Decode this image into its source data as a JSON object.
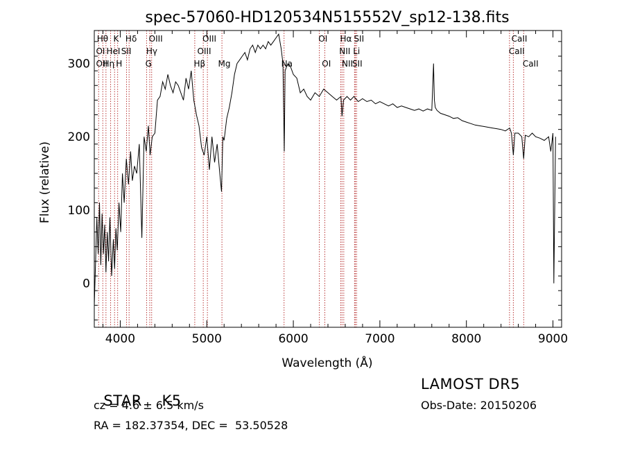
{
  "chart_data": {
    "type": "line",
    "title": "spec-57060-HD120534N515552V_sp12-138.fits",
    "xlabel": "Wavelength (Å)",
    "ylabel": "Flux (relative)",
    "xlim": [
      3700,
      9100
    ],
    "ylim": [
      -60,
      345
    ],
    "x_ticks": [
      4000,
      5000,
      6000,
      7000,
      8000,
      9000
    ],
    "y_ticks": [
      0,
      100,
      200,
      300
    ],
    "grid": false,
    "line_color": "#000000",
    "marker_color": "#b22222",
    "series": [
      {
        "x": [
          3700,
          3715,
          3730,
          3745,
          3760,
          3775,
          3790,
          3805,
          3820,
          3835,
          3850,
          3865,
          3880,
          3900,
          3920,
          3935,
          3950,
          3965,
          3985,
          4005,
          4025,
          4045,
          4070,
          4095,
          4120,
          4140,
          4165,
          4190,
          4220,
          4250,
          4275,
          4300,
          4325,
          4345,
          4370,
          4400,
          4430,
          4460,
          4490,
          4520,
          4550,
          4580,
          4610,
          4640,
          4670,
          4700,
          4730,
          4760,
          4790,
          4820,
          4850,
          4880,
          4910,
          4940,
          4970,
          5000,
          5030,
          5060,
          5090,
          5120,
          5150,
          5170,
          5185,
          5200,
          5230,
          5260,
          5290,
          5320,
          5350,
          5380,
          5410,
          5440,
          5470,
          5500,
          5530,
          5560,
          5590,
          5620,
          5650,
          5680,
          5710,
          5740,
          5770,
          5800,
          5830,
          5860,
          5880,
          5895,
          5905,
          5920,
          5940,
          5970,
          6000,
          6040,
          6080,
          6120,
          6160,
          6200,
          6250,
          6300,
          6350,
          6400,
          6450,
          6500,
          6550,
          6563,
          6580,
          6620,
          6660,
          6700,
          6750,
          6800,
          6850,
          6900,
          6950,
          7000,
          7050,
          7100,
          7150,
          7200,
          7250,
          7300,
          7350,
          7400,
          7450,
          7500,
          7550,
          7600,
          7620,
          7630,
          7640,
          7660,
          7700,
          7750,
          7800,
          7850,
          7900,
          7950,
          8000,
          8050,
          8100,
          8150,
          8200,
          8250,
          8300,
          8350,
          8400,
          8450,
          8500,
          8520,
          8542,
          8560,
          8600,
          8640,
          8662,
          8680,
          8720,
          8760,
          8800,
          8850,
          8900,
          8950,
          8975,
          8990,
          9000,
          9010,
          9030
        ],
        "values": [
          -30,
          30,
          90,
          40,
          110,
          25,
          95,
          40,
          80,
          15,
          70,
          30,
          90,
          10,
          60,
          20,
          75,
          45,
          110,
          70,
          150,
          110,
          170,
          135,
          180,
          140,
          160,
          150,
          190,
          62,
          200,
          180,
          215,
          175,
          200,
          205,
          250,
          255,
          275,
          265,
          285,
          270,
          260,
          275,
          270,
          260,
          250,
          280,
          265,
          290,
          250,
          230,
          215,
          185,
          175,
          200,
          155,
          200,
          165,
          190,
          150,
          125,
          200,
          195,
          225,
          240,
          260,
          285,
          300,
          305,
          310,
          315,
          305,
          320,
          325,
          315,
          325,
          320,
          325,
          320,
          330,
          325,
          330,
          335,
          340,
          320,
          300,
          180,
          290,
          295,
          300,
          295,
          285,
          280,
          260,
          265,
          255,
          250,
          260,
          255,
          265,
          260,
          255,
          250,
          255,
          228,
          250,
          255,
          250,
          255,
          248,
          252,
          248,
          250,
          245,
          248,
          245,
          242,
          245,
          240,
          242,
          240,
          238,
          236,
          238,
          235,
          238,
          236,
          300,
          250,
          240,
          236,
          232,
          230,
          228,
          225,
          226,
          222,
          220,
          218,
          216,
          215,
          214,
          213,
          212,
          211,
          210,
          208,
          212,
          205,
          175,
          205,
          205,
          200,
          170,
          202,
          200,
          205,
          200,
          198,
          195,
          200,
          180,
          195,
          205,
          0,
          200
        ]
      }
    ],
    "lines": [
      {
        "wl": 3750,
        "labels": [
          "Hθ",
          "OII"
        ]
      },
      {
        "wl": 3798,
        "labels": [
          "OII"
        ]
      },
      {
        "wl": 3835,
        "labels": [
          "Hη"
        ]
      },
      {
        "wl": 3889,
        "labels": [
          "HeI"
        ]
      },
      {
        "wl": 3934,
        "labels": [
          "K"
        ]
      },
      {
        "wl": 3970,
        "labels": [
          "H"
        ]
      },
      {
        "wl": 4072,
        "labels": [
          "SII"
        ]
      },
      {
        "wl": 4102,
        "labels": [
          "Hδ"
        ]
      },
      {
        "wl": 4304,
        "labels": [
          "G"
        ]
      },
      {
        "wl": 4341,
        "labels": [
          "Hγ"
        ]
      },
      {
        "wl": 4363,
        "labels": [
          "OIII"
        ]
      },
      {
        "wl": 4861,
        "labels": [
          "Hβ"
        ]
      },
      {
        "wl": 4959,
        "labels": [
          "OIII"
        ]
      },
      {
        "wl": 5007,
        "labels": [
          "OIII"
        ]
      },
      {
        "wl": 5175,
        "labels": [
          "Mg"
        ]
      },
      {
        "wl": 5893,
        "labels": [
          "Na"
        ]
      },
      {
        "wl": 6300,
        "labels": [
          "OI"
        ]
      },
      {
        "wl": 6364,
        "labels": [
          "OI"
        ]
      },
      {
        "wl": 6548,
        "labels": [
          "NII"
        ]
      },
      {
        "wl": 6563,
        "labels": [
          "Hα"
        ]
      },
      {
        "wl": 6583,
        "labels": [
          "NII"
        ]
      },
      {
        "wl": 6707,
        "labels": [
          "Li"
        ]
      },
      {
        "wl": 6716,
        "labels": [
          "SII"
        ]
      },
      {
        "wl": 6731,
        "labels": [
          "SII"
        ]
      },
      {
        "wl": 8498,
        "labels": [
          "CaII"
        ]
      },
      {
        "wl": 8542,
        "labels": [
          "CaII"
        ]
      },
      {
        "wl": 8662,
        "labels": [
          "CaII"
        ]
      }
    ],
    "line_label_rows": [
      {
        "text": "Hθ",
        "wl": 3730,
        "row": 0
      },
      {
        "text": "K",
        "wl": 3920,
        "row": 0
      },
      {
        "text": "Hδ",
        "wl": 4060,
        "row": 0
      },
      {
        "text": "OIII",
        "wl": 4330,
        "row": 0
      },
      {
        "text": "OIII",
        "wl": 4950,
        "row": 0
      },
      {
        "text": "OI",
        "wl": 6290,
        "row": 0
      },
      {
        "text": "Hα",
        "wl": 6540,
        "row": 0
      },
      {
        "text": "SII",
        "wl": 6700,
        "row": 0
      },
      {
        "text": "CaII",
        "wl": 8520,
        "row": 0
      },
      {
        "text": "OI",
        "wl": 3720,
        "row": 1
      },
      {
        "text": "HeI",
        "wl": 3840,
        "row": 1
      },
      {
        "text": "SII",
        "wl": 4010,
        "row": 1
      },
      {
        "text": "Hγ",
        "wl": 4300,
        "row": 1
      },
      {
        "text": "OIII",
        "wl": 4890,
        "row": 1
      },
      {
        "text": "NII",
        "wl": 6530,
        "row": 1
      },
      {
        "text": "Li",
        "wl": 6690,
        "row": 1
      },
      {
        "text": "CaII",
        "wl": 8490,
        "row": 1
      },
      {
        "text": "OII",
        "wl": 3720,
        "row": 2
      },
      {
        "text": "Hη",
        "wl": 3800,
        "row": 2
      },
      {
        "text": "H",
        "wl": 3950,
        "row": 2
      },
      {
        "text": "G",
        "wl": 4290,
        "row": 2
      },
      {
        "text": "Hβ",
        "wl": 4850,
        "row": 2
      },
      {
        "text": "Mg",
        "wl": 5130,
        "row": 2
      },
      {
        "text": "Na",
        "wl": 5860,
        "row": 2
      },
      {
        "text": "OI",
        "wl": 6330,
        "row": 2
      },
      {
        "text": "NII",
        "wl": 6560,
        "row": 2
      },
      {
        "text": "SII",
        "wl": 6680,
        "row": 2
      },
      {
        "text": "CaII",
        "wl": 8650,
        "row": 2
      }
    ]
  },
  "info": {
    "class_label": "STAR",
    "subclass": "K5",
    "survey": "LAMOST DR5",
    "cz_line": "cz = 4.6 ± 6.5 km/s",
    "obs_date": "Obs-Date: 20150206",
    "coords": "RA = 182.37354, DEC =  53.50528"
  }
}
